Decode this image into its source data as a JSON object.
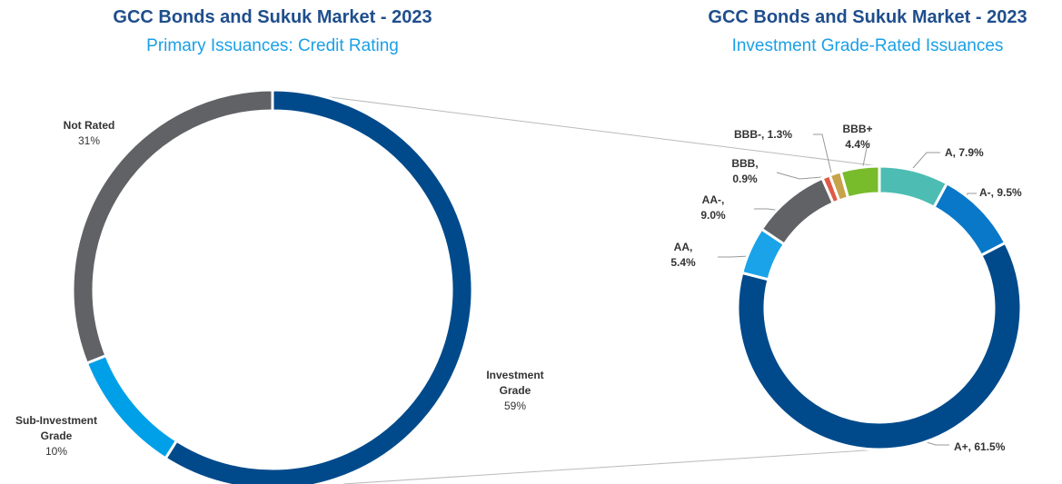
{
  "chart_data": [
    {
      "type": "donut",
      "title": "GCC Bonds and Sukuk Market - 2023",
      "subtitle": "Primary Issuances: Credit Rating",
      "categories": [
        "Investment Grade",
        "Sub-Investment Grade",
        "Not Rated"
      ],
      "values": [
        59,
        10,
        31
      ],
      "value_labels": [
        "59%",
        "10%",
        "31%"
      ],
      "colors": [
        "#004a8b",
        "#00a0e9",
        "#616266"
      ]
    },
    {
      "type": "donut",
      "title": "GCC Bonds and Sukuk Market - 2023",
      "subtitle": "Investment Grade-Rated Issuances",
      "categories": [
        "A,",
        "A-,",
        "A+,",
        "AA,",
        "AA-,",
        "BBB,",
        "BBB-,",
        "BBB+"
      ],
      "values": [
        7.9,
        9.5,
        61.5,
        5.4,
        9.0,
        0.9,
        1.3,
        4.4
      ],
      "value_labels": [
        "7.9%",
        "9.5%",
        "61.5%",
        "5.4%",
        "9.0%",
        "0.9%",
        "1.3%",
        "4.4%"
      ],
      "colors": [
        "#4dbdb3",
        "#0a78c8",
        "#004a8b",
        "#1aa3e8",
        "#616266",
        "#e05a47",
        "#c8a24a",
        "#78bc2c"
      ]
    }
  ]
}
